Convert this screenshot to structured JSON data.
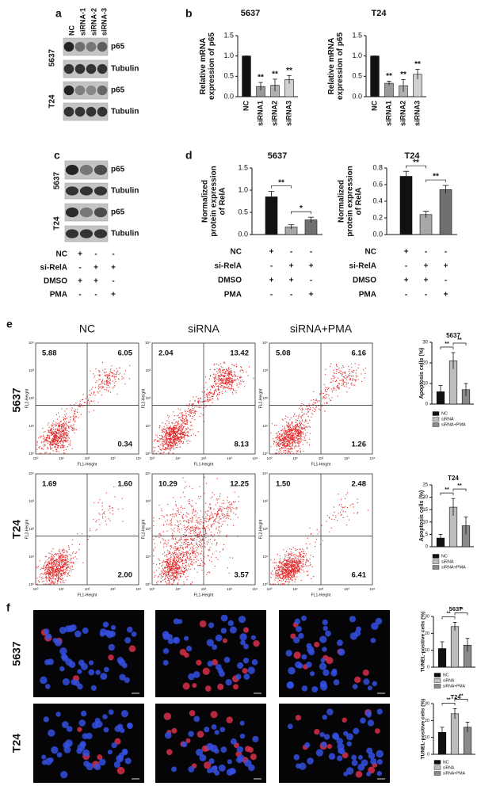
{
  "panel_labels": [
    "a",
    "b",
    "c",
    "d",
    "e",
    "f"
  ],
  "blot_a": {
    "lanes": [
      "NC",
      "siRNA-1",
      "siRNA-2",
      "siRNA-3"
    ],
    "cell_lines": [
      "5637",
      "T24"
    ],
    "proteins": [
      "p65",
      "Tubulin"
    ]
  },
  "blot_c": {
    "cell_lines": [
      "5637",
      "T24"
    ],
    "proteins": [
      "p65",
      "Tubulin"
    ]
  },
  "treatments_c": [
    {
      "label": "NC",
      "marks": [
        "+",
        "-",
        "-"
      ]
    },
    {
      "label": "si-RelA",
      "marks": [
        "-",
        "+",
        "+"
      ]
    },
    {
      "label": "DMSO",
      "marks": [
        "+",
        "+",
        "-"
      ]
    },
    {
      "label": "PMA",
      "marks": [
        "-",
        "-",
        "+"
      ]
    }
  ],
  "flow": {
    "columns": [
      "NC",
      "siRNA",
      "siRNA+PMA"
    ],
    "x_label": "FL1-Height",
    "y_label": "FL2-Height",
    "ticks": [
      "10⁰",
      "10¹",
      "10²",
      "10³",
      "10⁴"
    ],
    "rows": [
      {
        "label": "5637",
        "quadrants": [
          [
            "5.88",
            "6.05",
            "0.34"
          ],
          [
            "2.04",
            "13.42",
            "8.13"
          ],
          [
            "5.08",
            "6.16",
            "1.26"
          ]
        ]
      },
      {
        "label": "T24",
        "quadrants": [
          [
            "1.69",
            "1.60",
            "2.00"
          ],
          [
            "10.29",
            "12.25",
            "3.57"
          ],
          [
            "1.50",
            "2.48",
            "6.41"
          ]
        ]
      }
    ]
  },
  "tunel_rows": [
    "5637",
    "T24"
  ],
  "chart_data": [
    {
      "type": "bar",
      "title": "5637",
      "y_label": [
        "Relative mRNA",
        "expression of p65"
      ],
      "categories": [
        "NC",
        "siRNA1",
        "siRNA2",
        "siRNA3"
      ],
      "values": [
        1.0,
        0.25,
        0.28,
        0.42
      ],
      "errors": [
        0,
        0.1,
        0.15,
        0.1
      ],
      "colors": [
        "#111111",
        "#9a9a9a",
        "#b0b0b0",
        "#d0d0d0"
      ],
      "ylim": [
        0,
        1.5
      ],
      "yticks": [
        {
          "value": 0,
          "label": "0.0"
        },
        {
          "value": 0.5,
          "label": "0.5"
        },
        {
          "value": 1,
          "label": "1.0"
        },
        {
          "value": 1.5,
          "label": "1.5"
        }
      ],
      "significance": [
        null,
        "**",
        "**",
        "**"
      ]
    },
    {
      "type": "bar",
      "title": "T24",
      "y_label": [
        "Relative mRNA",
        "expression of p65"
      ],
      "categories": [
        "NC",
        "siRNA1",
        "siRNA2",
        "siRNA3"
      ],
      "values": [
        1.0,
        0.33,
        0.27,
        0.55
      ],
      "errors": [
        0,
        0.05,
        0.15,
        0.12
      ],
      "colors": [
        "#111111",
        "#9a9a9a",
        "#b0b0b0",
        "#d0d0d0"
      ],
      "ylim": [
        0,
        1.5
      ],
      "yticks": [
        {
          "value": 0,
          "label": "0.0"
        },
        {
          "value": 0.5,
          "label": "0.5"
        },
        {
          "value": 1,
          "label": "1.0"
        },
        {
          "value": 1.5,
          "label": "1.5"
        }
      ],
      "significance": [
        null,
        "**",
        "**",
        "**"
      ]
    },
    {
      "type": "bar",
      "title": "5637",
      "y_label": [
        "Normalized",
        "protein expression",
        "of RelA"
      ],
      "categories": [
        null,
        null,
        null
      ],
      "values": [
        0.85,
        0.17,
        0.33
      ],
      "errors": [
        0.12,
        0.05,
        0.06
      ],
      "colors": [
        "#111111",
        "#a8a8a8",
        "#707070"
      ],
      "ylim": [
        0,
        1.5
      ],
      "yticks": [
        {
          "value": 0,
          "label": "0.0"
        },
        {
          "value": 0.5,
          "label": "0.5"
        },
        {
          "value": 1,
          "label": "1.0"
        },
        {
          "value": 1.5,
          "label": "1.5"
        }
      ],
      "brackets": [
        "**",
        "*"
      ],
      "treatments": [
        {
          "label": "NC",
          "marks": [
            "+",
            "-",
            "-"
          ]
        },
        {
          "label": "si-RelA",
          "marks": [
            "-",
            "+",
            "+"
          ]
        },
        {
          "label": "DMSO",
          "marks": [
            "+",
            "+",
            "-"
          ]
        },
        {
          "label": "PMA",
          "marks": [
            "-",
            "-",
            "+"
          ]
        }
      ]
    },
    {
      "type": "bar",
      "title": "T24",
      "y_label": [
        "Normalized",
        "protein expression",
        "of RelA"
      ],
      "categories": [
        null,
        null,
        null
      ],
      "values": [
        0.7,
        0.24,
        0.54
      ],
      "errors": [
        0.06,
        0.04,
        0.05
      ],
      "colors": [
        "#111111",
        "#a8a8a8",
        "#707070"
      ],
      "ylim": [
        0,
        0.8
      ],
      "yticks": [
        {
          "value": 0,
          "label": "0.0"
        },
        {
          "value": 0.2,
          "label": "0.2"
        },
        {
          "value": 0.4,
          "label": "0.4"
        },
        {
          "value": 0.6,
          "label": "0.6"
        },
        {
          "value": 0.8,
          "label": "0.8"
        }
      ],
      "brackets": [
        "**",
        "**"
      ],
      "treatments": [
        {
          "label": "NC",
          "marks": [
            "+",
            "-",
            "-"
          ]
        },
        {
          "label": "si-RelA",
          "marks": [
            "-",
            "+",
            "+"
          ]
        },
        {
          "label": "DMSO",
          "marks": [
            "+",
            "+",
            "-"
          ]
        },
        {
          "label": "PMA",
          "marks": [
            "-",
            "-",
            "+"
          ]
        }
      ]
    },
    {
      "type": "bar",
      "title": "5637",
      "y_label": [
        "Apoptosis cells (%)"
      ],
      "categories": [
        "NC",
        "siRNA",
        "siRNA+PMA"
      ],
      "values": [
        6,
        21,
        7
      ],
      "errors": [
        3,
        4,
        3
      ],
      "colors": [
        "#111111",
        "#bdbdbd",
        "#8a8a8a"
      ],
      "ylim": [
        0,
        30
      ],
      "yticks": [
        0,
        10,
        20,
        30
      ],
      "brackets": [
        "**",
        "**"
      ],
      "legend": true
    },
    {
      "type": "bar",
      "title": "T24",
      "y_label": [
        "Apoptosis cells (%)"
      ],
      "categories": [
        "NC",
        "siRNA",
        "siRNA+PMA"
      ],
      "values": [
        3.5,
        16,
        8.5
      ],
      "errors": [
        1.5,
        3.5,
        3.5
      ],
      "colors": [
        "#111111",
        "#bdbdbd",
        "#8a8a8a"
      ],
      "ylim": [
        0,
        25
      ],
      "yticks": [
        0,
        5,
        10,
        15,
        20,
        25
      ],
      "brackets": [
        "**",
        "**"
      ],
      "legend": true
    },
    {
      "type": "bar",
      "title": "5637",
      "y_label": [
        "TUNEL-positive cells (%)"
      ],
      "categories": [
        "NC",
        "siRNA",
        "siRNA+PMA"
      ],
      "values": [
        11,
        24,
        13
      ],
      "errors": [
        4,
        2.5,
        4
      ],
      "colors": [
        "#111111",
        "#bdbdbd",
        "#8a8a8a"
      ],
      "ylim": [
        0,
        30
      ],
      "yticks": [
        0,
        10,
        20,
        30
      ],
      "brackets": [
        "**",
        "**"
      ],
      "legend": true
    },
    {
      "type": "bar",
      "title": "T24",
      "y_label": [
        "TUNEL-positive cells (%)"
      ],
      "categories": [
        "NC",
        "siRNA",
        "siRNA+PMA"
      ],
      "values": [
        13,
        24,
        16
      ],
      "errors": [
        3,
        3,
        3
      ],
      "colors": [
        "#111111",
        "#bdbdbd",
        "#8a8a8a"
      ],
      "ylim": [
        0,
        30
      ],
      "yticks": [
        0,
        10,
        20,
        30
      ],
      "brackets": [
        "**",
        "**"
      ],
      "legend": true
    }
  ]
}
